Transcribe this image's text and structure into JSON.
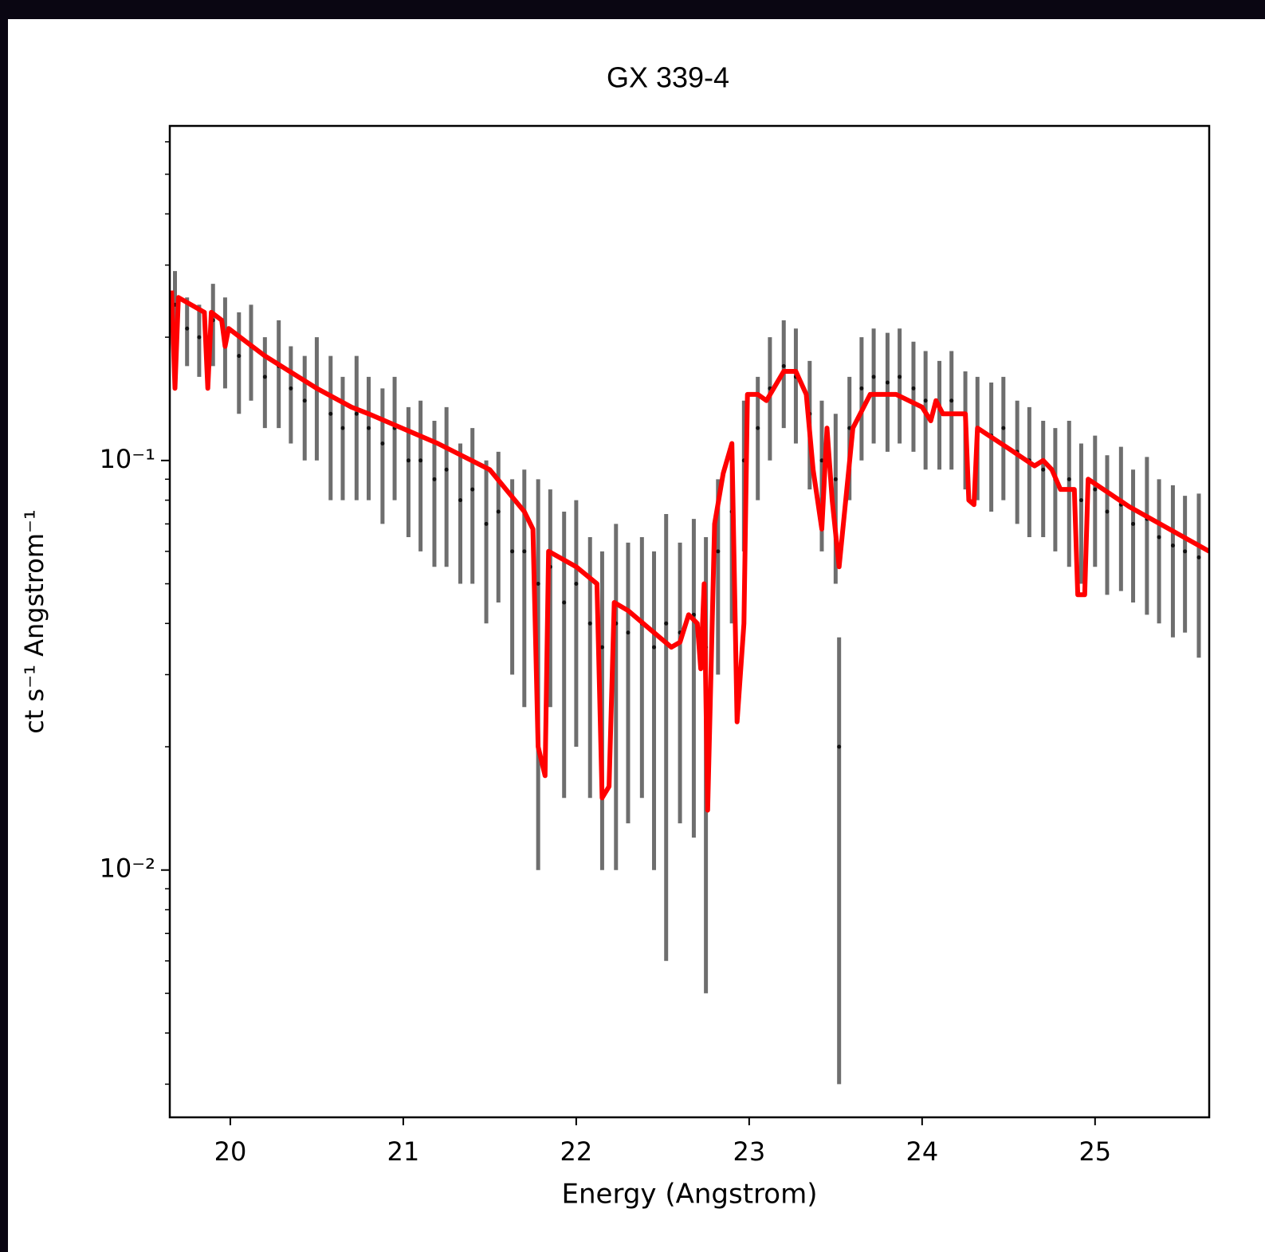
{
  "chart_data": {
    "type": "errorbar",
    "title": "GX 339-4",
    "xlabel": "Energy (Angstrom)",
    "ylabel": "ct s⁻¹ Angstrom⁻¹",
    "xlim": [
      19.65,
      25.66
    ],
    "xticks": [
      20,
      21,
      22,
      23,
      24,
      25
    ],
    "ylim": [
      0.00249,
      0.656
    ],
    "log_y": true,
    "yticks": [
      {
        "value": 0.01,
        "label": "10⁻²"
      },
      {
        "value": 0.1,
        "label": "10⁻¹"
      }
    ],
    "yminorticks": [
      0.003,
      0.004,
      0.005,
      0.006,
      0.007,
      0.008,
      0.009,
      0.02,
      0.03,
      0.04,
      0.05,
      0.06,
      0.07,
      0.08,
      0.09,
      0.2,
      0.3,
      0.4,
      0.5,
      0.6
    ],
    "series": [
      {
        "type": "errorbar",
        "color": "#555555",
        "x": [
          19.68,
          19.75,
          19.82,
          19.9,
          19.97,
          20.05,
          20.12,
          20.2,
          20.28,
          20.35,
          20.43,
          20.5,
          20.58,
          20.65,
          20.73,
          20.8,
          20.88,
          20.95,
          21.03,
          21.1,
          21.18,
          21.25,
          21.33,
          21.4,
          21.48,
          21.55,
          21.63,
          21.7,
          21.78,
          21.85,
          21.93,
          22.0,
          22.08,
          22.15,
          22.23,
          22.3,
          22.38,
          22.45,
          22.52,
          22.6,
          22.68,
          22.75,
          22.82,
          22.9,
          22.97,
          23.05,
          23.12,
          23.2,
          23.27,
          23.35,
          23.42,
          23.5,
          23.52,
          23.58,
          23.65,
          23.72,
          23.8,
          23.87,
          23.95,
          24.02,
          24.1,
          24.17,
          24.25,
          24.32,
          24.4,
          24.47,
          24.55,
          24.62,
          24.7,
          24.77,
          24.85,
          24.92,
          25.0,
          25.07,
          25.15,
          25.22,
          25.3,
          25.37,
          25.45,
          25.52,
          25.6
        ],
        "values": [
          0.24,
          0.21,
          0.2,
          0.22,
          0.2,
          0.18,
          0.19,
          0.16,
          0.17,
          0.15,
          0.14,
          0.15,
          0.13,
          0.12,
          0.13,
          0.12,
          0.11,
          0.12,
          0.1,
          0.1,
          0.09,
          0.095,
          0.08,
          0.085,
          0.07,
          0.075,
          0.06,
          0.06,
          0.05,
          0.055,
          0.045,
          0.05,
          0.04,
          0.035,
          0.04,
          0.038,
          0.04,
          0.035,
          0.04,
          0.038,
          0.042,
          0.035,
          0.06,
          0.075,
          0.1,
          0.12,
          0.15,
          0.17,
          0.16,
          0.13,
          0.1,
          0.09,
          0.02,
          0.12,
          0.15,
          0.16,
          0.155,
          0.16,
          0.15,
          0.14,
          0.135,
          0.14,
          0.125,
          0.12,
          0.115,
          0.12,
          0.105,
          0.1,
          0.095,
          0.09,
          0.09,
          0.08,
          0.085,
          0.075,
          0.078,
          0.07,
          0.072,
          0.065,
          0.062,
          0.06,
          0.058
        ],
        "errors": [
          0.05,
          0.04,
          0.04,
          0.05,
          0.05,
          0.05,
          0.05,
          0.04,
          0.05,
          0.04,
          0.04,
          0.05,
          0.05,
          0.04,
          0.05,
          0.04,
          0.04,
          0.04,
          0.035,
          0.04,
          0.035,
          0.04,
          0.03,
          0.035,
          0.03,
          0.03,
          0.03,
          0.035,
          0.04,
          0.03,
          0.03,
          0.03,
          0.025,
          0.025,
          0.03,
          0.025,
          0.025,
          0.025,
          0.034,
          0.025,
          0.03,
          0.03,
          0.03,
          0.035,
          0.04,
          0.04,
          0.05,
          0.05,
          0.05,
          0.045,
          0.04,
          0.04,
          0.017,
          0.04,
          0.05,
          0.05,
          0.05,
          0.05,
          0.045,
          0.045,
          0.04,
          0.045,
          0.04,
          0.04,
          0.04,
          0.04,
          0.035,
          0.035,
          0.03,
          0.03,
          0.035,
          0.03,
          0.03,
          0.028,
          0.03,
          0.025,
          0.03,
          0.025,
          0.025,
          0.022,
          0.025
        ]
      },
      {
        "type": "line",
        "color": "#ff0000",
        "x": [
          19.66,
          19.68,
          19.7,
          19.85,
          19.87,
          19.89,
          19.95,
          19.97,
          19.99,
          20.2,
          20.5,
          20.7,
          20.8,
          21.2,
          21.5,
          21.7,
          21.75,
          21.78,
          21.82,
          21.84,
          22.0,
          22.12,
          22.15,
          22.19,
          22.22,
          22.3,
          22.45,
          22.55,
          22.6,
          22.65,
          22.7,
          22.72,
          22.74,
          22.76,
          22.8,
          22.85,
          22.9,
          22.93,
          22.97,
          22.99,
          23.05,
          23.1,
          23.2,
          23.27,
          23.33,
          23.37,
          23.42,
          23.45,
          23.48,
          23.52,
          23.6,
          23.7,
          23.85,
          24.0,
          24.05,
          24.08,
          24.12,
          24.2,
          24.25,
          24.27,
          24.3,
          24.32,
          24.5,
          24.65,
          24.7,
          24.75,
          24.8,
          24.88,
          24.9,
          24.94,
          24.96,
          25.2,
          25.66
        ],
        "values": [
          0.26,
          0.15,
          0.25,
          0.23,
          0.15,
          0.23,
          0.22,
          0.19,
          0.21,
          0.18,
          0.15,
          0.135,
          0.13,
          0.11,
          0.095,
          0.075,
          0.068,
          0.02,
          0.017,
          0.06,
          0.055,
          0.05,
          0.015,
          0.016,
          0.045,
          0.043,
          0.038,
          0.035,
          0.036,
          0.042,
          0.04,
          0.031,
          0.05,
          0.014,
          0.07,
          0.093,
          0.11,
          0.023,
          0.04,
          0.145,
          0.145,
          0.14,
          0.165,
          0.165,
          0.145,
          0.095,
          0.068,
          0.12,
          0.08,
          0.055,
          0.12,
          0.145,
          0.145,
          0.135,
          0.125,
          0.14,
          0.13,
          0.13,
          0.13,
          0.08,
          0.078,
          0.12,
          0.107,
          0.097,
          0.1,
          0.095,
          0.085,
          0.085,
          0.047,
          0.047,
          0.09,
          0.077,
          0.06
        ]
      }
    ]
  }
}
